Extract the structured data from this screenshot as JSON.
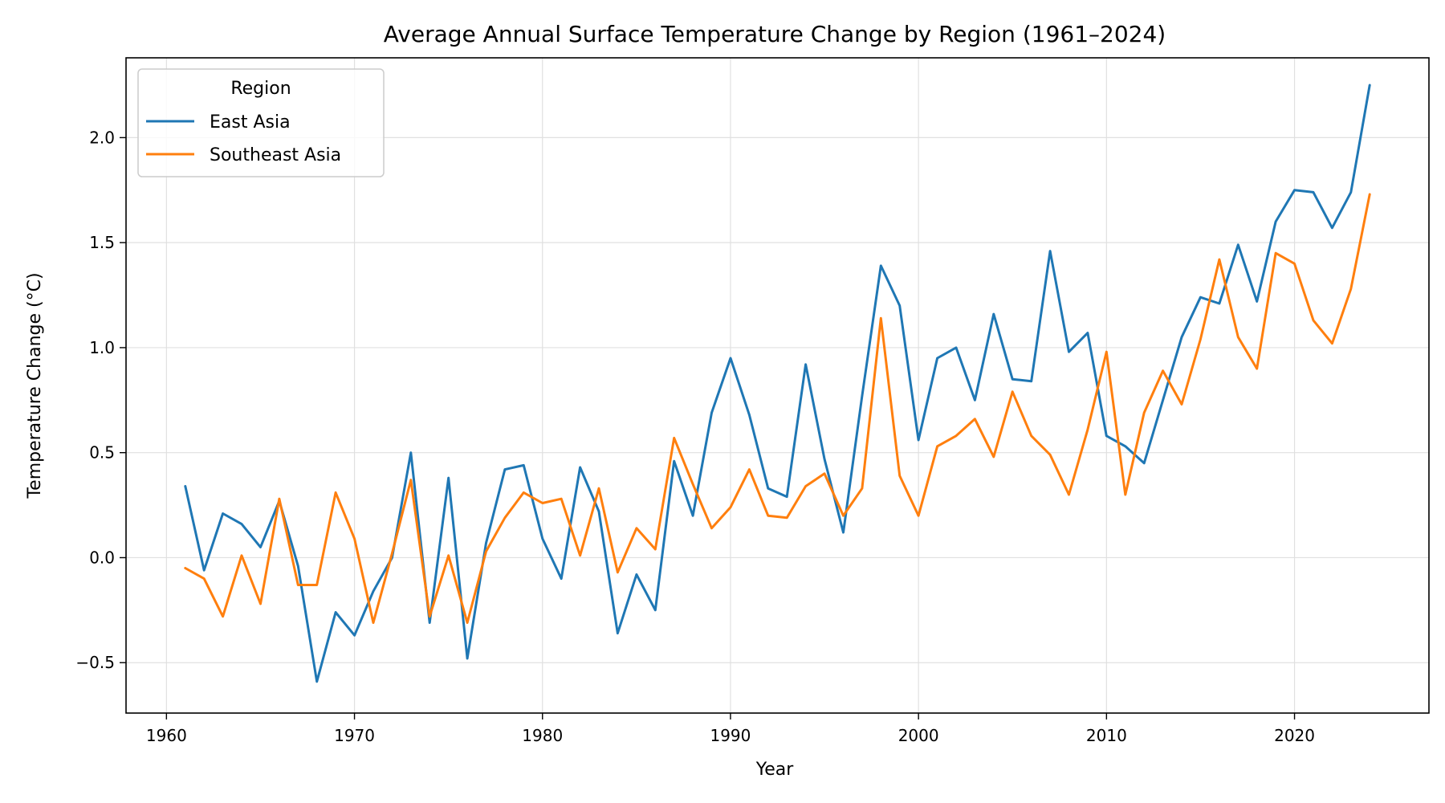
{
  "chart_data": {
    "type": "line",
    "title": "Average Annual Surface Temperature Change by Region (1961–2024)",
    "xlabel": "Year",
    "ylabel": "Temperature Change (°C)",
    "xlim": [
      1957.85,
      2027.15
    ],
    "ylim": [
      -0.74,
      2.38
    ],
    "xticks": [
      1960,
      1970,
      1980,
      1990,
      2000,
      2010,
      2020
    ],
    "yticks": [
      -0.5,
      0.0,
      0.5,
      1.0,
      1.5,
      2.0
    ],
    "ytick_labels": [
      "−0.5",
      "0.0",
      "0.5",
      "1.0",
      "1.5",
      "2.0"
    ],
    "grid": true,
    "legend": {
      "title": "Region",
      "position": "top-left"
    },
    "x": [
      1961,
      1962,
      1963,
      1964,
      1965,
      1966,
      1967,
      1968,
      1969,
      1970,
      1971,
      1972,
      1973,
      1974,
      1975,
      1976,
      1977,
      1978,
      1979,
      1980,
      1981,
      1982,
      1983,
      1984,
      1985,
      1986,
      1987,
      1988,
      1989,
      1990,
      1991,
      1992,
      1993,
      1994,
      1995,
      1996,
      1997,
      1998,
      1999,
      2000,
      2001,
      2002,
      2003,
      2004,
      2005,
      2006,
      2007,
      2008,
      2009,
      2010,
      2011,
      2012,
      2013,
      2014,
      2015,
      2016,
      2017,
      2018,
      2019,
      2020,
      2021,
      2022,
      2023,
      2024
    ],
    "series": [
      {
        "name": "East Asia",
        "color": "#1f77b4",
        "values": [
          0.34,
          -0.06,
          0.21,
          0.16,
          0.05,
          0.27,
          -0.04,
          -0.59,
          -0.26,
          -0.37,
          -0.16,
          0.0,
          0.5,
          -0.31,
          0.38,
          -0.48,
          0.07,
          0.42,
          0.44,
          0.09,
          -0.1,
          0.43,
          0.22,
          -0.36,
          -0.08,
          -0.25,
          0.46,
          0.2,
          0.69,
          0.95,
          0.68,
          0.33,
          0.29,
          0.92,
          0.47,
          0.12,
          0.77,
          1.39,
          1.2,
          0.56,
          0.95,
          1.0,
          0.75,
          1.16,
          0.85,
          0.84,
          1.46,
          0.98,
          1.07,
          0.58,
          0.53,
          0.45,
          0.75,
          1.05,
          1.24,
          1.21,
          1.49,
          1.22,
          1.6,
          1.75,
          1.74,
          1.57,
          1.74,
          2.25
        ]
      },
      {
        "name": "Southeast Asia",
        "color": "#ff7f0e",
        "values": [
          -0.05,
          -0.1,
          -0.28,
          0.01,
          -0.22,
          0.28,
          -0.13,
          -0.13,
          0.31,
          0.09,
          -0.31,
          0.02,
          0.37,
          -0.28,
          0.01,
          -0.31,
          0.03,
          0.19,
          0.31,
          0.26,
          0.28,
          0.01,
          0.33,
          -0.07,
          0.14,
          0.04,
          0.57,
          0.35,
          0.14,
          0.24,
          0.42,
          0.2,
          0.19,
          0.34,
          0.4,
          0.2,
          0.33,
          1.14,
          0.39,
          0.2,
          0.53,
          0.58,
          0.66,
          0.48,
          0.79,
          0.58,
          0.49,
          0.3,
          0.61,
          0.98,
          0.3,
          0.69,
          0.89,
          0.73,
          1.04,
          1.42,
          1.05,
          0.9,
          1.45,
          1.4,
          1.13,
          1.02,
          1.28,
          1.73
        ]
      }
    ]
  }
}
